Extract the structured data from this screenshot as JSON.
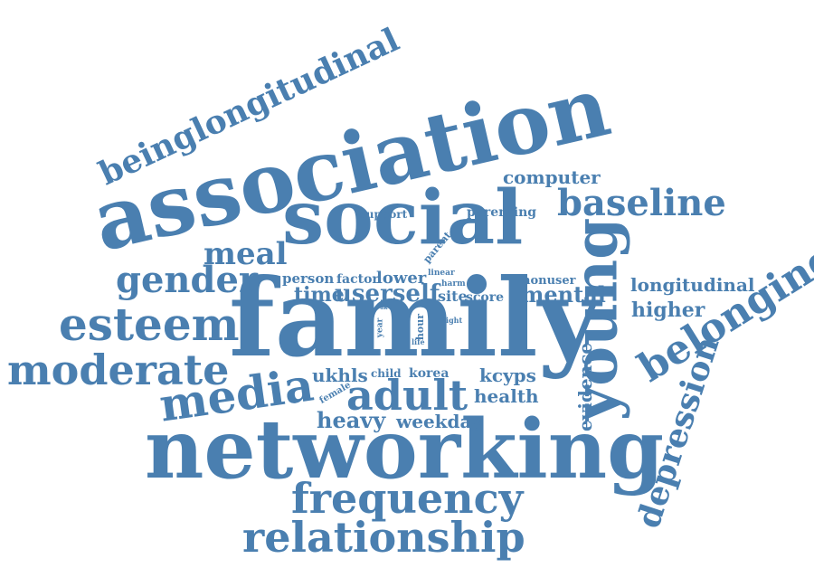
{
  "color": "#4a7fb0",
  "words": [
    {
      "id": "family",
      "text": "family"
    },
    {
      "id": "networking",
      "text": "networking"
    },
    {
      "id": "association",
      "text": "association"
    },
    {
      "id": "social",
      "text": "social"
    },
    {
      "id": "young",
      "text": "young"
    },
    {
      "id": "adult",
      "text": "adult"
    },
    {
      "id": "media",
      "text": "media"
    },
    {
      "id": "esteem",
      "text": "esteem"
    },
    {
      "id": "moderate",
      "text": "moderate"
    },
    {
      "id": "frequency",
      "text": "frequency"
    },
    {
      "id": "relationship",
      "text": "relationship"
    },
    {
      "id": "belonging",
      "text": "belonging"
    },
    {
      "id": "depression",
      "text": "depression"
    },
    {
      "id": "baseline",
      "text": "baseline"
    },
    {
      "id": "gender",
      "text": "gender"
    },
    {
      "id": "meal",
      "text": "meal"
    },
    {
      "id": "beinglongitudinal",
      "text": "beinglongitudinal"
    },
    {
      "id": "computer",
      "text": "computer"
    },
    {
      "id": "heavy",
      "text": "heavy"
    },
    {
      "id": "weekday",
      "text": "weekday"
    },
    {
      "id": "mental",
      "text": "mental"
    },
    {
      "id": "higher",
      "text": "higher"
    },
    {
      "id": "longitudinal",
      "text": "longitudinal"
    },
    {
      "id": "evidence",
      "text": "evidence"
    },
    {
      "id": "health",
      "text": "health"
    },
    {
      "id": "kcyps",
      "text": "kcyps"
    },
    {
      "id": "ukhls",
      "text": "ukhls"
    },
    {
      "id": "userself",
      "text": "userself"
    },
    {
      "id": "time",
      "text": "time"
    },
    {
      "id": "person",
      "text": "person"
    },
    {
      "id": "factor",
      "text": "factor"
    },
    {
      "id": "lower",
      "text": "lower"
    },
    {
      "id": "site",
      "text": "site"
    },
    {
      "id": "score",
      "text": "score"
    },
    {
      "id": "nonuser",
      "text": "nonuser"
    },
    {
      "id": "support",
      "text": "support"
    },
    {
      "id": "parenting",
      "text": "parenting"
    },
    {
      "id": "parent",
      "text": "parent"
    },
    {
      "id": "linear",
      "text": "linear"
    },
    {
      "id": "harm",
      "text": "harm"
    },
    {
      "id": "child",
      "text": "child"
    },
    {
      "id": "korea",
      "text": "korea"
    },
    {
      "id": "female",
      "text": "female"
    },
    {
      "id": "year",
      "text": "year"
    },
    {
      "id": "hour",
      "text": "hour"
    },
    {
      "id": "light",
      "text": "light"
    },
    {
      "id": "life",
      "text": "life"
    },
    {
      "id": "uk",
      "text": "uk"
    }
  ]
}
